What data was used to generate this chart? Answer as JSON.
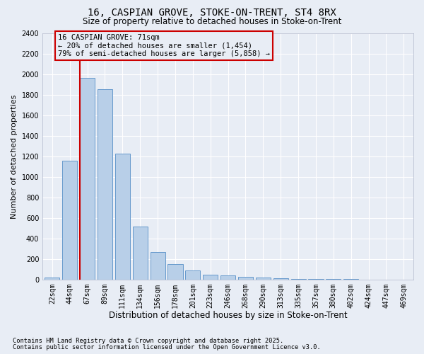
{
  "title1": "16, CASPIAN GROVE, STOKE-ON-TRENT, ST4 8RX",
  "title2": "Size of property relative to detached houses in Stoke-on-Trent",
  "xlabel": "Distribution of detached houses by size in Stoke-on-Trent",
  "ylabel": "Number of detached properties",
  "categories": [
    "22sqm",
    "44sqm",
    "67sqm",
    "89sqm",
    "111sqm",
    "134sqm",
    "156sqm",
    "178sqm",
    "201sqm",
    "223sqm",
    "246sqm",
    "268sqm",
    "290sqm",
    "313sqm",
    "335sqm",
    "357sqm",
    "380sqm",
    "402sqm",
    "424sqm",
    "447sqm",
    "469sqm"
  ],
  "values": [
    25,
    1155,
    1960,
    1850,
    1230,
    515,
    270,
    155,
    88,
    50,
    40,
    30,
    20,
    18,
    10,
    8,
    5,
    5,
    3,
    2,
    2
  ],
  "bar_color": "#b8cfe8",
  "bar_edge_color": "#6699cc",
  "bg_color": "#e8edf5",
  "grid_color": "#ffffff",
  "vline_color": "#cc0000",
  "vline_x": 1.575,
  "annotation_text": "16 CASPIAN GROVE: 71sqm\n← 20% of detached houses are smaller (1,454)\n79% of semi-detached houses are larger (5,858) →",
  "annotation_box_edgecolor": "#cc0000",
  "ylim_max": 2400,
  "yticks": [
    0,
    200,
    400,
    600,
    800,
    1000,
    1200,
    1400,
    1600,
    1800,
    2000,
    2200,
    2400
  ],
  "footnote1": "Contains HM Land Registry data © Crown copyright and database right 2025.",
  "footnote2": "Contains public sector information licensed under the Open Government Licence v3.0.",
  "title1_fontsize": 10,
  "title2_fontsize": 8.5,
  "xlabel_fontsize": 8.5,
  "ylabel_fontsize": 8,
  "tick_fontsize": 7,
  "annot_fontsize": 7.5,
  "footnote_fontsize": 6.2
}
